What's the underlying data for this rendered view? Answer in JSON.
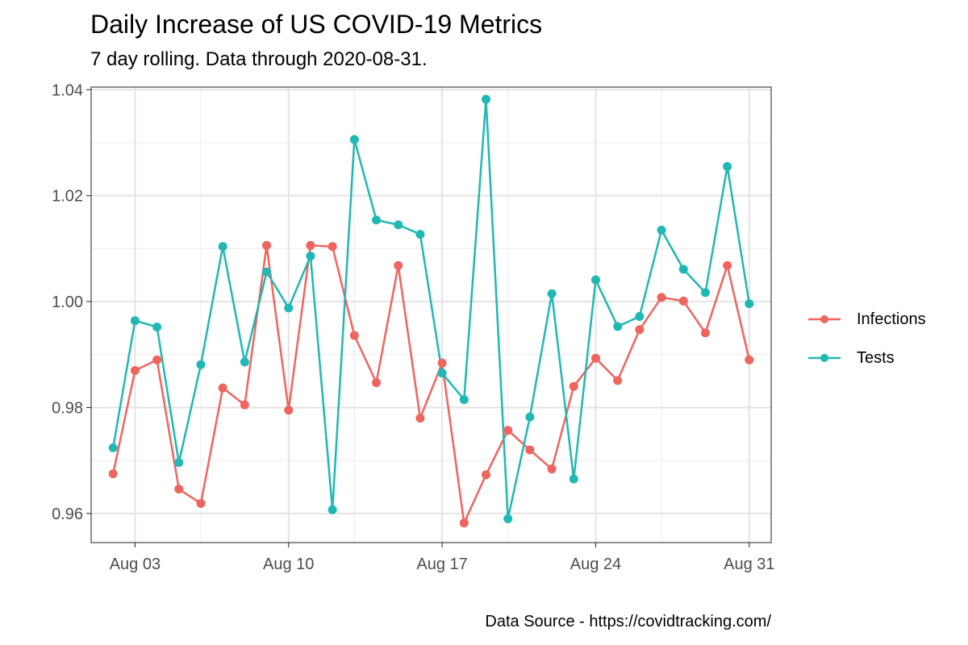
{
  "header": {
    "title": "Daily Increase of US COVID-19 Metrics",
    "subtitle": "7 day rolling. Data through 2020-08-31."
  },
  "caption": "Data Source - https://covidtracking.com/",
  "legend": {
    "items": [
      {
        "label": "Infections",
        "color": "#F0645E"
      },
      {
        "label": "Tests",
        "color": "#1FB8B4"
      }
    ]
  },
  "chart_data": {
    "type": "line",
    "title": "Daily Increase of US COVID-19 Metrics",
    "subtitle": "7 day rolling. Data through 2020-08-31.",
    "xlabel": "",
    "ylabel": "",
    "x": [
      "2020-08-02",
      "2020-08-03",
      "2020-08-04",
      "2020-08-05",
      "2020-08-06",
      "2020-08-07",
      "2020-08-08",
      "2020-08-09",
      "2020-08-10",
      "2020-08-11",
      "2020-08-12",
      "2020-08-13",
      "2020-08-14",
      "2020-08-15",
      "2020-08-16",
      "2020-08-17",
      "2020-08-18",
      "2020-08-19",
      "2020-08-20",
      "2020-08-21",
      "2020-08-22",
      "2020-08-23",
      "2020-08-24",
      "2020-08-25",
      "2020-08-26",
      "2020-08-27",
      "2020-08-28",
      "2020-08-29",
      "2020-08-30",
      "2020-08-31"
    ],
    "x_ticks": [
      {
        "date": "2020-08-03",
        "label": "Aug 03"
      },
      {
        "date": "2020-08-10",
        "label": "Aug 10"
      },
      {
        "date": "2020-08-17",
        "label": "Aug 17"
      },
      {
        "date": "2020-08-24",
        "label": "Aug 24"
      },
      {
        "date": "2020-08-31",
        "label": "Aug 31"
      }
    ],
    "y_ticks": [
      {
        "value": 0.96,
        "label": "0.96"
      },
      {
        "value": 0.98,
        "label": "0.98"
      },
      {
        "value": 1.0,
        "label": "1.00"
      },
      {
        "value": 1.02,
        "label": "1.02"
      },
      {
        "value": 1.04,
        "label": "1.04"
      }
    ],
    "xlim": [
      "2020-08-01",
      "2020-09-01"
    ],
    "ylim": [
      0.9545,
      1.0405
    ],
    "grid": true,
    "legend_position": "right",
    "series": [
      {
        "name": "Infections",
        "color": "#F0645E",
        "values": [
          0.9675,
          0.987,
          0.989,
          0.9646,
          0.9619,
          0.9837,
          0.9805,
          1.0106,
          0.9795,
          1.0106,
          1.0104,
          0.9936,
          0.9847,
          1.0068,
          0.978,
          0.9884,
          0.9582,
          0.9673,
          0.9757,
          0.972,
          0.9684,
          0.984,
          0.9893,
          0.9851,
          0.9947,
          1.0008,
          1.0001,
          0.9941,
          1.0068,
          0.989
        ]
      },
      {
        "name": "Tests",
        "color": "#1FB8B4",
        "values": [
          0.9724,
          0.9964,
          0.9952,
          0.9696,
          0.9881,
          1.0104,
          0.9886,
          1.0056,
          0.9988,
          1.0086,
          0.9607,
          1.0306,
          1.0154,
          1.0145,
          1.0127,
          0.9865,
          0.9815,
          1.0382,
          0.959,
          0.9782,
          1.0015,
          0.9665,
          1.0041,
          0.9953,
          0.9972,
          1.0135,
          1.0061,
          1.0017,
          1.0255,
          0.9996
        ]
      }
    ]
  }
}
